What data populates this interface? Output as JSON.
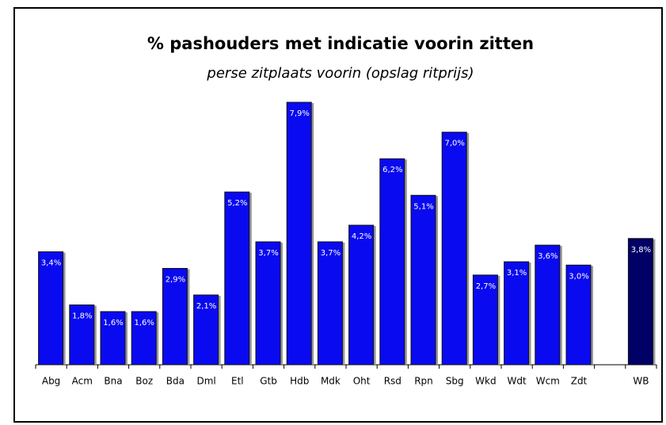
{
  "chart_data": {
    "type": "bar",
    "title": "% pashouders met indicatie voorin zitten",
    "subtitle": "perse zitplaats voorin (opslag ritprijs)",
    "categories": [
      "Abg",
      "Acm",
      "Bna",
      "Boz",
      "Bda",
      "Dml",
      "Etl",
      "Gtb",
      "Hdb",
      "Mdk",
      "Oht",
      "Rsd",
      "Rpn",
      "Sbg",
      "Wkd",
      "Wdt",
      "Wcm",
      "Zdt",
      null,
      "WB"
    ],
    "values": [
      3.4,
      1.8,
      1.6,
      1.6,
      2.9,
      2.1,
      5.2,
      3.7,
      7.9,
      3.7,
      4.2,
      6.2,
      5.1,
      7.0,
      2.7,
      3.1,
      3.6,
      3.0,
      null,
      3.8
    ],
    "value_labels": [
      "3,4%",
      "1,8%",
      "1,6%",
      "1,6%",
      "2,9%",
      "2,1%",
      "5,2%",
      "3,7%",
      "7,9%",
      "3,7%",
      "4,2%",
      "6,2%",
      "5,1%",
      "7,0%",
      "2,7%",
      "3,1%",
      "3,6%",
      "3,0%",
      null,
      "3,8%"
    ],
    "colors": [
      "#0a0af0",
      "#0a0af0",
      "#0a0af0",
      "#0a0af0",
      "#0a0af0",
      "#0a0af0",
      "#0a0af0",
      "#0a0af0",
      "#0a0af0",
      "#0a0af0",
      "#0a0af0",
      "#0a0af0",
      "#0a0af0",
      "#0a0af0",
      "#0a0af0",
      "#0a0af0",
      "#0a0af0",
      "#0a0af0",
      null,
      "#000066"
    ]
  }
}
